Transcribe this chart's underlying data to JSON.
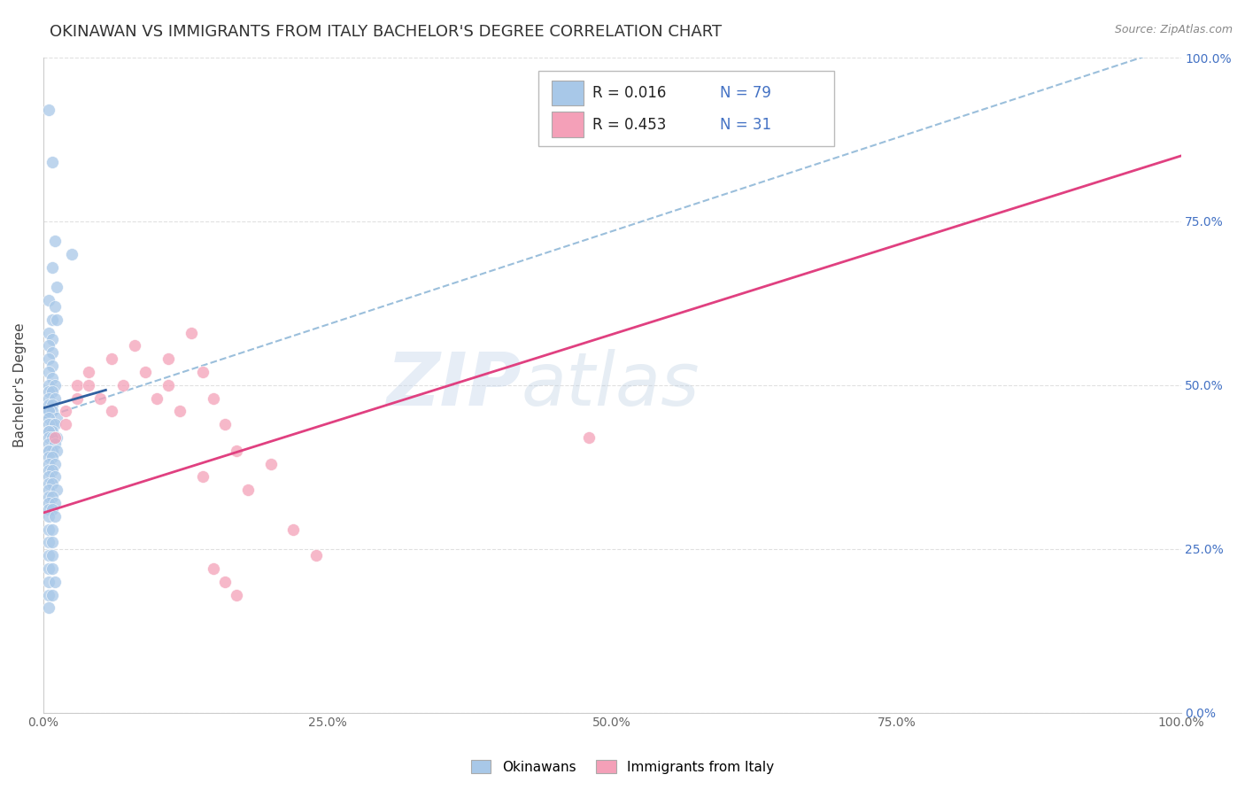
{
  "title": "OKINAWAN VS IMMIGRANTS FROM ITALY BACHELOR'S DEGREE CORRELATION CHART",
  "source": "Source: ZipAtlas.com",
  "ylabel": "Bachelor's Degree",
  "watermark_zip": "ZIP",
  "watermark_atlas": "atlas",
  "xlim": [
    0,
    1.0
  ],
  "ylim": [
    0,
    1.0
  ],
  "xticks": [
    0.0,
    0.25,
    0.5,
    0.75,
    1.0
  ],
  "yticks": [
    0.0,
    0.25,
    0.5,
    0.75,
    1.0
  ],
  "xticklabels": [
    "0.0%",
    "25.0%",
    "50.0%",
    "75.0%",
    "100.0%"
  ],
  "yticklabels": [
    "0.0%",
    "25.0%",
    "50.0%",
    "75.0%",
    "100.0%"
  ],
  "legend_labels": [
    "Okinawans",
    "Immigrants from Italy"
  ],
  "R_blue": 0.016,
  "N_blue": 79,
  "R_pink": 0.453,
  "N_pink": 31,
  "blue_color": "#a8c8e8",
  "pink_color": "#f4a0b8",
  "blue_line_color": "#3060a0",
  "pink_line_color": "#e04080",
  "dash_line_color": "#90b8d8",
  "blue_scatter": [
    [
      0.005,
      0.92
    ],
    [
      0.008,
      0.84
    ],
    [
      0.01,
      0.72
    ],
    [
      0.025,
      0.7
    ],
    [
      0.008,
      0.68
    ],
    [
      0.012,
      0.65
    ],
    [
      0.005,
      0.63
    ],
    [
      0.01,
      0.62
    ],
    [
      0.008,
      0.6
    ],
    [
      0.012,
      0.6
    ],
    [
      0.005,
      0.58
    ],
    [
      0.008,
      0.57
    ],
    [
      0.005,
      0.56
    ],
    [
      0.008,
      0.55
    ],
    [
      0.005,
      0.54
    ],
    [
      0.008,
      0.53
    ],
    [
      0.005,
      0.52
    ],
    [
      0.008,
      0.51
    ],
    [
      0.005,
      0.5
    ],
    [
      0.01,
      0.5
    ],
    [
      0.005,
      0.49
    ],
    [
      0.008,
      0.49
    ],
    [
      0.005,
      0.48
    ],
    [
      0.01,
      0.48
    ],
    [
      0.005,
      0.47
    ],
    [
      0.008,
      0.47
    ],
    [
      0.005,
      0.46
    ],
    [
      0.008,
      0.46
    ],
    [
      0.005,
      0.46
    ],
    [
      0.012,
      0.45
    ],
    [
      0.005,
      0.45
    ],
    [
      0.008,
      0.44
    ],
    [
      0.005,
      0.44
    ],
    [
      0.01,
      0.44
    ],
    [
      0.005,
      0.43
    ],
    [
      0.008,
      0.43
    ],
    [
      0.005,
      0.43
    ],
    [
      0.012,
      0.42
    ],
    [
      0.005,
      0.42
    ],
    [
      0.008,
      0.42
    ],
    [
      0.005,
      0.41
    ],
    [
      0.01,
      0.41
    ],
    [
      0.005,
      0.4
    ],
    [
      0.008,
      0.4
    ],
    [
      0.005,
      0.4
    ],
    [
      0.012,
      0.4
    ],
    [
      0.005,
      0.39
    ],
    [
      0.008,
      0.39
    ],
    [
      0.005,
      0.38
    ],
    [
      0.01,
      0.38
    ],
    [
      0.005,
      0.37
    ],
    [
      0.008,
      0.37
    ],
    [
      0.005,
      0.36
    ],
    [
      0.01,
      0.36
    ],
    [
      0.005,
      0.35
    ],
    [
      0.008,
      0.35
    ],
    [
      0.005,
      0.34
    ],
    [
      0.012,
      0.34
    ],
    [
      0.005,
      0.33
    ],
    [
      0.008,
      0.33
    ],
    [
      0.005,
      0.32
    ],
    [
      0.01,
      0.32
    ],
    [
      0.005,
      0.31
    ],
    [
      0.008,
      0.31
    ],
    [
      0.005,
      0.3
    ],
    [
      0.01,
      0.3
    ],
    [
      0.005,
      0.28
    ],
    [
      0.008,
      0.28
    ],
    [
      0.005,
      0.26
    ],
    [
      0.008,
      0.26
    ],
    [
      0.005,
      0.24
    ],
    [
      0.008,
      0.24
    ],
    [
      0.005,
      0.22
    ],
    [
      0.008,
      0.22
    ],
    [
      0.005,
      0.2
    ],
    [
      0.01,
      0.2
    ],
    [
      0.005,
      0.18
    ],
    [
      0.008,
      0.18
    ],
    [
      0.005,
      0.16
    ]
  ],
  "pink_scatter": [
    [
      0.01,
      0.42
    ],
    [
      0.02,
      0.46
    ],
    [
      0.02,
      0.44
    ],
    [
      0.03,
      0.5
    ],
    [
      0.03,
      0.48
    ],
    [
      0.04,
      0.52
    ],
    [
      0.04,
      0.5
    ],
    [
      0.05,
      0.48
    ],
    [
      0.06,
      0.54
    ],
    [
      0.06,
      0.46
    ],
    [
      0.07,
      0.5
    ],
    [
      0.08,
      0.56
    ],
    [
      0.09,
      0.52
    ],
    [
      0.1,
      0.48
    ],
    [
      0.11,
      0.54
    ],
    [
      0.11,
      0.5
    ],
    [
      0.12,
      0.46
    ],
    [
      0.13,
      0.58
    ],
    [
      0.14,
      0.52
    ],
    [
      0.14,
      0.36
    ],
    [
      0.15,
      0.48
    ],
    [
      0.15,
      0.22
    ],
    [
      0.16,
      0.44
    ],
    [
      0.16,
      0.2
    ],
    [
      0.17,
      0.4
    ],
    [
      0.17,
      0.18
    ],
    [
      0.18,
      0.34
    ],
    [
      0.2,
      0.38
    ],
    [
      0.22,
      0.28
    ],
    [
      0.24,
      0.24
    ],
    [
      0.48,
      0.42
    ]
  ],
  "title_fontsize": 13,
  "axis_label_fontsize": 11,
  "tick_fontsize": 10,
  "legend_fontsize": 12,
  "right_tick_color": "#4472c4",
  "grid_color": "#cccccc",
  "background_color": "#ffffff"
}
